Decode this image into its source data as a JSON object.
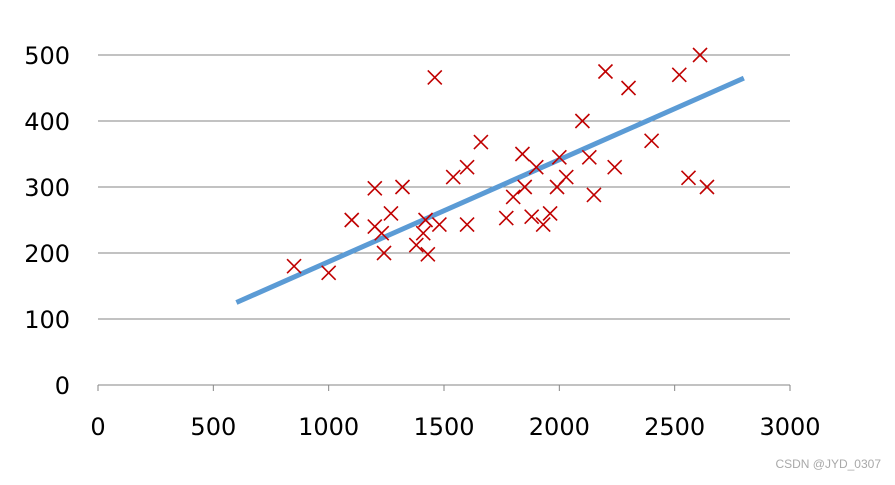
{
  "chart_data": {
    "type": "scatter",
    "title": "",
    "xlabel": "",
    "ylabel": "",
    "xlim": [
      0,
      3000
    ],
    "ylim": [
      0,
      500
    ],
    "xticks": [
      "0",
      "500",
      "1000",
      "1500",
      "2000",
      "2500",
      "3000"
    ],
    "yticks": [
      "0",
      "100",
      "200",
      "300",
      "400",
      "500"
    ],
    "grid": "horizontal",
    "legend": "none",
    "marker": "x",
    "colors": {
      "points": "#c00000",
      "fit_line": "#5b9bd5",
      "grid": "#868686"
    },
    "points": [
      [
        850,
        180
      ],
      [
        1000,
        170
      ],
      [
        1100,
        250
      ],
      [
        1200,
        240
      ],
      [
        1200,
        298
      ],
      [
        1230,
        230
      ],
      [
        1240,
        200
      ],
      [
        1270,
        260
      ],
      [
        1320,
        300
      ],
      [
        1380,
        212
      ],
      [
        1410,
        230
      ],
      [
        1420,
        250
      ],
      [
        1430,
        198
      ],
      [
        1460,
        466
      ],
      [
        1480,
        243
      ],
      [
        1540,
        315
      ],
      [
        1600,
        330
      ],
      [
        1600,
        243
      ],
      [
        1660,
        368
      ],
      [
        1770,
        253
      ],
      [
        1800,
        285
      ],
      [
        1840,
        350
      ],
      [
        1850,
        300
      ],
      [
        1880,
        255
      ],
      [
        1900,
        330
      ],
      [
        1930,
        243
      ],
      [
        1960,
        260
      ],
      [
        1990,
        300
      ],
      [
        2000,
        345
      ],
      [
        2030,
        315
      ],
      [
        2100,
        400
      ],
      [
        2130,
        345
      ],
      [
        2150,
        288
      ],
      [
        2200,
        475
      ],
      [
        2240,
        330
      ],
      [
        2300,
        450
      ],
      [
        2400,
        370
      ],
      [
        2520,
        470
      ],
      [
        2560,
        314
      ],
      [
        2610,
        500
      ],
      [
        2640,
        300
      ]
    ],
    "fit_line": {
      "x": [
        600,
        2800
      ],
      "y": [
        125,
        465
      ]
    }
  },
  "watermark": "CSDN @JYD_0307"
}
